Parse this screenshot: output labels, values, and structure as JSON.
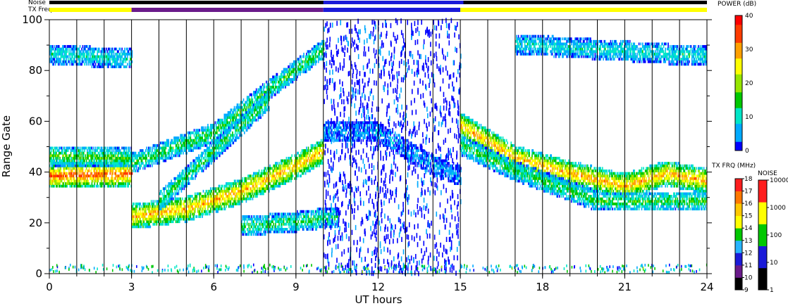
{
  "chart_data": {
    "type": "heatmap",
    "xlabel": "UT hours",
    "ylabel": "Range Gate",
    "xlim": [
      0,
      24
    ],
    "ylim": [
      0,
      100
    ],
    "x_ticks": [
      "0",
      "3",
      "6",
      "9",
      "12",
      "15",
      "18",
      "21",
      "24"
    ],
    "y_ticks": [
      "0",
      "20",
      "40",
      "60",
      "80",
      "100"
    ],
    "top_bars": {
      "noise_label": "Noise",
      "txfreq_label": "TX Freq",
      "txfreq_segments": [
        {
          "start": 0,
          "end": 3,
          "band": "14"
        },
        {
          "start": 3,
          "end": 10,
          "band": "10"
        },
        {
          "start": 10,
          "end": 15,
          "band": "11"
        },
        {
          "start": 15,
          "end": 24,
          "band": "14"
        }
      ]
    },
    "power_colorbar": {
      "title": "POWER (dB)",
      "ticks": [
        "0",
        "10",
        "20",
        "30",
        "40"
      ],
      "colors": [
        "#0000ff",
        "#00aaff",
        "#00e6c8",
        "#00c800",
        "#96e600",
        "#ffff00",
        "#ffa000",
        "#ff3c00",
        "#ff0000"
      ]
    },
    "txfreq_colorbar": {
      "title": "TX FRQ (MHz)",
      "ticks": [
        "9",
        "10",
        "11",
        "12",
        "13",
        "14",
        "15",
        "16",
        "17",
        "18"
      ],
      "colors": [
        "#000000",
        "#6a1a8a",
        "#1a1ad8",
        "#28b4ff",
        "#00c800",
        "#ffff00",
        "#ffc800",
        "#ff7800",
        "#ff1e1e"
      ]
    },
    "noise_colorbar": {
      "title": "NOISE",
      "ticks": [
        "1",
        "10",
        "100",
        "1000",
        "10000"
      ],
      "colors": [
        "#000000",
        "#1a1ad8",
        "#00c800",
        "#ffff00",
        "#ff1e1e"
      ]
    },
    "echo_bands": [
      {
        "t": [
          0,
          3
        ],
        "gate": [
          38,
          39
        ],
        "power": 35
      },
      {
        "t": [
          0,
          3
        ],
        "gate": [
          46,
          45
        ],
        "power": 17
      },
      {
        "t": [
          3,
          5,
          7,
          9,
          10
        ],
        "gate": [
          22,
          25,
          32,
          42,
          48
        ],
        "power": 30
      },
      {
        "t": [
          3,
          6,
          8,
          10
        ],
        "gate": [
          43,
          55,
          72,
          88
        ],
        "power": 15
      },
      {
        "t": [
          4,
          6,
          8
        ],
        "gate": [
          28,
          48,
          68
        ],
        "power": 15
      },
      {
        "t": [
          7,
          9,
          10.5
        ],
        "gate": [
          18,
          20,
          22
        ],
        "power": 14
      },
      {
        "t": [
          10,
          12,
          14,
          15
        ],
        "gate": [
          56,
          55,
          42,
          38
        ],
        "power": 6
      },
      {
        "t": [
          15,
          17,
          19,
          21,
          22.5,
          24
        ],
        "gate": [
          58,
          45,
          39,
          34,
          39,
          36
        ],
        "power": 30
      },
      {
        "t": [
          15,
          17,
          20,
          24
        ],
        "gate": [
          50,
          40,
          28,
          28
        ],
        "power": 15
      },
      {
        "t": [
          0,
          3
        ],
        "gate": [
          86,
          84
        ],
        "power": 10
      },
      {
        "t": [
          17,
          24
        ],
        "gate": [
          90,
          85
        ],
        "power": 10
      }
    ]
  }
}
